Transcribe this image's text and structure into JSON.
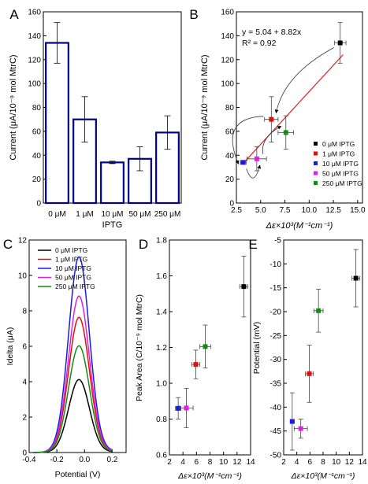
{
  "chart_data": [
    {
      "panel": "A",
      "type": "bar",
      "xlabel": "IPTG",
      "ylabel": "Current (μA/10⁻⁹ mol MtrC)",
      "categories": [
        "0 μM",
        "1 μM",
        "10 μM",
        "50 μM",
        "250 μM"
      ],
      "values": [
        134,
        70,
        34,
        37,
        59
      ],
      "errors": [
        17,
        19,
        1,
        10,
        14
      ],
      "ylim": [
        0,
        160
      ],
      "yticks": [
        0,
        20,
        40,
        60,
        80,
        100,
        120,
        140,
        160
      ],
      "bar_color": "#00008b"
    },
    {
      "panel": "B",
      "type": "scatter",
      "xlabel": "Δε×10³(M⁻¹cm⁻¹)",
      "ylabel": "Current (μA/10⁻⁹ mol MtrC)",
      "xlim": [
        2.5,
        15.5
      ],
      "ylim": [
        0,
        160
      ],
      "xticks": [
        "2.5",
        "5.0",
        "7.5",
        "10.0",
        "12.5",
        "15.0"
      ],
      "yticks": [
        0,
        20,
        40,
        60,
        80,
        100,
        120,
        140,
        160
      ],
      "fit_line": {
        "text": "y = 5.04 + 8.82x",
        "r2_text": "R² = 0.92",
        "intercept": 5.04,
        "slope": 8.82,
        "x_range": [
          3.4,
          13.5
        ],
        "color": "#e02020"
      },
      "series": [
        {
          "name": "0 μM IPTG",
          "color": "#000000",
          "x": 13.2,
          "y": 134,
          "xerr": 0.6,
          "yerr": 17
        },
        {
          "name": "1 μM IPTG",
          "color": "#e01010",
          "x": 6.1,
          "y": 70,
          "xerr": 0.7,
          "yerr": 19
        },
        {
          "name": "10 μM IPTG",
          "color": "#1a1ae6",
          "x": 3.2,
          "y": 34,
          "xerr": 0.3,
          "yerr": 1
        },
        {
          "name": "50 μM IPTG",
          "color": "#e020e0",
          "x": 4.6,
          "y": 37,
          "xerr": 1.0,
          "yerr": 10
        },
        {
          "name": "250 μM IPTG",
          "color": "#148c14",
          "x": 7.6,
          "y": 59,
          "xerr": 0.8,
          "yerr": 14
        }
      ],
      "legend_position": "right"
    },
    {
      "panel": "C",
      "type": "line",
      "xlabel": "Potential (V)",
      "ylabel": "Idelta (μA)",
      "xlim": [
        -0.4,
        0.3
      ],
      "ylim": [
        0,
        12
      ],
      "xticks": [
        "-0.4",
        "-0.2",
        "0.0",
        "0.2"
      ],
      "yticks": [
        0,
        2,
        4,
        6,
        8,
        10,
        12
      ],
      "peak_x": -0.04,
      "series": [
        {
          "name": "0 μM IPTG",
          "color": "#000000",
          "peak": 4.1
        },
        {
          "name": "1 μM IPTG",
          "color": "#e01010",
          "peak": 7.6
        },
        {
          "name": "10 μM IPTG",
          "color": "#1a1ae6",
          "peak": 11.0
        },
        {
          "name": "50 μM IPTG",
          "color": "#e020e0",
          "peak": 8.8
        },
        {
          "name": "250 μM IPTG",
          "color": "#148c14",
          "peak": 6.0
        }
      ],
      "legend_position": "top-right"
    },
    {
      "panel": "D",
      "type": "scatter",
      "xlabel": "Δε×10³(M⁻¹cm⁻¹)",
      "ylabel": "Peak Area (C/10⁻⁹ mol MtrC)",
      "xlim": [
        2,
        14
      ],
      "ylim": [
        0.6,
        1.8
      ],
      "xticks": [
        2,
        4,
        6,
        8,
        10,
        12,
        14
      ],
      "yticks": [
        "0.6",
        "0.8",
        "1.0",
        "1.2",
        "1.4",
        "1.6",
        "1.8"
      ],
      "series": [
        {
          "name": "0 μM IPTG",
          "color": "#000000",
          "x": 13.0,
          "y": 1.54,
          "xerr": 0.6,
          "yerr": 0.17
        },
        {
          "name": "1 μM IPTG",
          "color": "#e01010",
          "x": 5.9,
          "y": 1.105,
          "xerr": 0.6,
          "yerr": 0.08
        },
        {
          "name": "10 μM IPTG",
          "color": "#1a1ae6",
          "x": 3.3,
          "y": 0.86,
          "xerr": 0.4,
          "yerr": 0.06
        },
        {
          "name": "50 μM IPTG",
          "color": "#e020e0",
          "x": 4.5,
          "y": 0.862,
          "xerr": 1.0,
          "yerr": 0.11
        },
        {
          "name": "250 μM IPTG",
          "color": "#148c14",
          "x": 7.3,
          "y": 1.205,
          "xerr": 0.8,
          "yerr": 0.12
        }
      ]
    },
    {
      "panel": "E",
      "type": "scatter",
      "xlabel": "Δε×10³(M⁻¹cm⁻¹)",
      "ylabel": "Potential (mV)",
      "xlim": [
        2,
        14
      ],
      "ylim": [
        -50,
        -5
      ],
      "xticks": [
        2,
        4,
        6,
        8,
        10,
        12,
        14
      ],
      "yticks": [
        -50,
        -45,
        -40,
        -35,
        -30,
        -25,
        -20,
        -15,
        -10,
        -5
      ],
      "series": [
        {
          "name": "0 μM IPTG",
          "color": "#000000",
          "x": 13.0,
          "y": -13,
          "xerr": 0.6,
          "yerr": 6
        },
        {
          "name": "1 μM IPTG",
          "color": "#e01010",
          "x": 5.9,
          "y": -33,
          "xerr": 0.6,
          "yerr": 6
        },
        {
          "name": "10 μM IPTG",
          "color": "#1a1ae6",
          "x": 3.3,
          "y": -43,
          "xerr": 0.3,
          "yerr": 6
        },
        {
          "name": "50 μM IPTG",
          "color": "#e020e0",
          "x": 4.6,
          "y": -44.5,
          "xerr": 1.0,
          "yerr": 2
        },
        {
          "name": "250 μM IPTG",
          "color": "#148c14",
          "x": 7.3,
          "y": -19.8,
          "xerr": 0.7,
          "yerr": 4.5
        }
      ]
    }
  ]
}
